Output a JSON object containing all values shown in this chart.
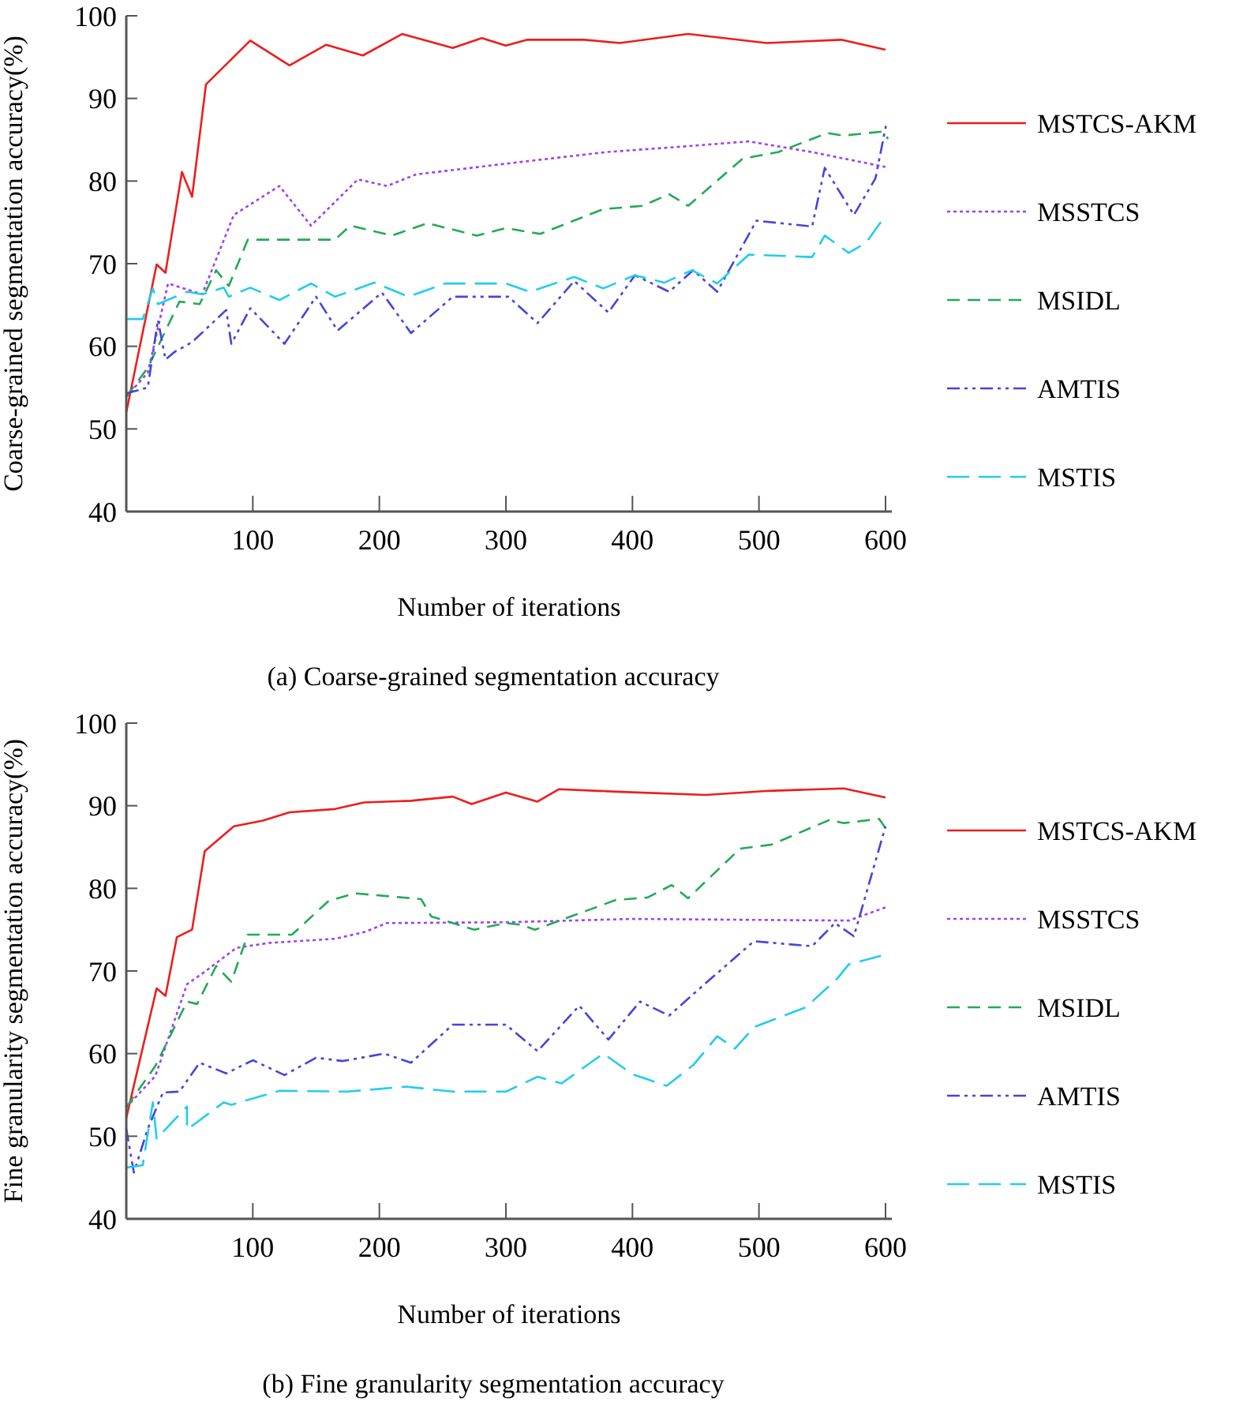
{
  "chart_data": [
    {
      "type": "line",
      "xlabel": "Number of iterations",
      "ylabel": "Coarse-grained segmentation accuracy(%)",
      "annotations": [
        "(a) Coarse-grained segmentation accuracy"
      ],
      "xlim": [
        0,
        605
      ],
      "xticks": [
        100,
        200,
        300,
        400,
        500,
        600
      ],
      "ylim": [
        40,
        100
      ],
      "yticks": [
        40,
        50,
        60,
        70,
        80,
        90,
        100
      ],
      "grid": false,
      "legend": "right",
      "series": [
        {
          "name": "MSTCS-AKM",
          "color": "#ee1c1c",
          "line_style": "solid",
          "x": [
            0,
            24,
            31,
            44,
            52,
            63,
            98,
            129,
            158,
            187,
            218,
            258,
            281,
            300,
            317,
            362,
            390,
            444,
            506,
            565,
            600
          ],
          "values": [
            52.0,
            69.9,
            68.9,
            81.1,
            78.1,
            91.7,
            97.0,
            94.0,
            96.5,
            95.2,
            97.8,
            96.1,
            97.3,
            96.4,
            97.1,
            97.1,
            96.7,
            97.8,
            96.7,
            97.1,
            95.9
          ]
        },
        {
          "name": "MSSTCS",
          "color": "#a040f0",
          "line_style": "dotted",
          "x": [
            0,
            17,
            33,
            60,
            85,
            121,
            146,
            183,
            206,
            229,
            300,
            379,
            442,
            492,
            542,
            600
          ],
          "values": [
            53.9,
            56.8,
            67.6,
            66.3,
            75.9,
            79.4,
            74.6,
            80.2,
            79.4,
            80.8,
            82.1,
            83.5,
            84.2,
            84.8,
            83.5,
            81.7
          ]
        },
        {
          "name": "MSIDL",
          "color": "#22aa55",
          "line_style": "dashed",
          "x": [
            0,
            17,
            42,
            58,
            71,
            81,
            96,
            165,
            177,
            210,
            238,
            277,
            300,
            327,
            377,
            408,
            429,
            444,
            487,
            515,
            554,
            567,
            598,
            602
          ],
          "values": [
            53.9,
            57.4,
            65.4,
            65.1,
            69.2,
            67.3,
            72.9,
            72.9,
            74.6,
            73.4,
            74.9,
            73.4,
            74.3,
            73.6,
            76.6,
            77.0,
            78.4,
            77.0,
            82.7,
            83.5,
            85.8,
            85.5,
            86.0,
            85.1
          ]
        },
        {
          "name": "AMTIS",
          "color": "#4444dd",
          "line_style": "dashdot",
          "x": [
            0,
            17,
            25,
            31,
            38,
            52,
            79,
            83,
            98,
            125,
            150,
            167,
            202,
            225,
            258,
            302,
            325,
            354,
            381,
            402,
            429,
            448,
            467,
            498,
            542,
            552,
            575,
            592,
            601
          ],
          "values": [
            54.3,
            55.0,
            63.2,
            58.4,
            59.3,
            60.5,
            64.4,
            60.3,
            64.6,
            60.3,
            66.0,
            61.9,
            66.5,
            61.6,
            66.0,
            66.0,
            62.8,
            67.9,
            64.1,
            68.6,
            66.6,
            69.2,
            66.6,
            75.2,
            74.5,
            81.6,
            75.9,
            80.3,
            87.2
          ]
        },
        {
          "name": "MSTIS",
          "color": "#22ccee",
          "line_style": "longdash",
          "x": [
            0,
            13,
            21,
            25,
            48,
            60,
            77,
            81,
            98,
            121,
            146,
            165,
            196,
            223,
            252,
            300,
            319,
            354,
            377,
            402,
            425,
            447,
            467,
            492,
            542,
            552,
            571,
            585,
            598
          ],
          "values": [
            63.3,
            63.3,
            67.0,
            65.1,
            66.6,
            66.3,
            67.1,
            66.0,
            67.1,
            65.6,
            67.6,
            66.0,
            67.7,
            66.0,
            67.6,
            67.6,
            66.6,
            68.4,
            67.0,
            68.6,
            67.7,
            69.2,
            67.6,
            71.1,
            70.8,
            73.4,
            71.3,
            72.6,
            75.4
          ]
        }
      ]
    },
    {
      "type": "line",
      "xlabel": "Number of iterations",
      "ylabel": "Fine granularity segmentation accuracy(%)",
      "annotations": [
        "(b) Fine granularity segmentation accuracy"
      ],
      "xlim": [
        0,
        605
      ],
      "xticks": [
        100,
        200,
        300,
        400,
        500,
        600
      ],
      "ylim": [
        40,
        100
      ],
      "yticks": [
        40,
        50,
        60,
        70,
        80,
        90,
        100
      ],
      "grid": false,
      "legend": "right",
      "series": [
        {
          "name": "MSTCS-AKM",
          "color": "#ee1c1c",
          "line_style": "solid",
          "x": [
            0,
            24,
            31,
            40,
            52,
            62,
            85,
            108,
            129,
            165,
            188,
            225,
            258,
            273,
            300,
            325,
            342,
            387,
            458,
            508,
            567,
            600
          ],
          "values": [
            52.2,
            67.9,
            67.0,
            74.1,
            75.0,
            84.5,
            87.5,
            88.2,
            89.2,
            89.6,
            90.4,
            90.6,
            91.1,
            90.2,
            91.6,
            90.5,
            92.0,
            91.7,
            91.3,
            91.8,
            92.1,
            91.0
          ]
        },
        {
          "name": "MSSTCS",
          "color": "#a040f0",
          "line_style": "dotted",
          "x": [
            0,
            23,
            48,
            62,
            87,
            113,
            165,
            188,
            206,
            300,
            400,
            571,
            600
          ],
          "values": [
            53.5,
            57.3,
            68.4,
            69.9,
            72.8,
            73.4,
            73.9,
            74.7,
            75.8,
            75.9,
            76.3,
            76.1,
            77.7
          ]
        },
        {
          "name": "MSIDL",
          "color": "#22aa55",
          "line_style": "dashed",
          "x": [
            0,
            23,
            48,
            56,
            71,
            83,
            96,
            131,
            160,
            181,
            233,
            241,
            275,
            300,
            312,
            323,
            387,
            412,
            431,
            444,
            485,
            510,
            556,
            567,
            595,
            600
          ],
          "values": [
            53.5,
            58.5,
            66.3,
            66.0,
            70.6,
            68.7,
            74.4,
            74.4,
            78.5,
            79.4,
            78.7,
            76.6,
            75.0,
            75.8,
            75.6,
            75.0,
            78.6,
            78.9,
            80.4,
            78.8,
            84.8,
            85.3,
            88.3,
            87.9,
            88.4,
            87.3
          ]
        },
        {
          "name": "AMTIS",
          "color": "#4444dd",
          "line_style": "dashdot",
          "x": [
            0,
            6,
            17,
            29,
            42,
            58,
            79,
            100,
            125,
            150,
            171,
            204,
            225,
            258,
            300,
            325,
            358,
            381,
            406,
            429,
            454,
            496,
            542,
            560,
            575,
            600
          ],
          "values": [
            50.9,
            45.6,
            50.9,
            55.3,
            55.4,
            58.9,
            57.6,
            59.2,
            57.4,
            59.5,
            59.1,
            60.0,
            58.9,
            63.5,
            63.5,
            60.3,
            65.8,
            61.7,
            66.3,
            64.6,
            68.0,
            73.6,
            73.0,
            75.8,
            74.2,
            87.5
          ]
        },
        {
          "name": "MSTIS",
          "color": "#22ccee",
          "line_style": "longdash",
          "x": [
            0,
            13,
            21,
            24,
            48,
            48,
            77,
            83,
            121,
            175,
            221,
            258,
            300,
            325,
            344,
            377,
            400,
            427,
            448,
            467,
            481,
            496,
            537,
            562,
            571,
            598
          ],
          "values": [
            46.2,
            46.5,
            54.1,
            49.7,
            53.6,
            50.8,
            54.1,
            53.8,
            55.5,
            55.4,
            56.0,
            55.4,
            55.4,
            57.2,
            56.4,
            60.0,
            57.5,
            56.1,
            58.6,
            62.1,
            60.6,
            63.2,
            65.6,
            69.1,
            70.8,
            71.9
          ]
        }
      ]
    }
  ]
}
